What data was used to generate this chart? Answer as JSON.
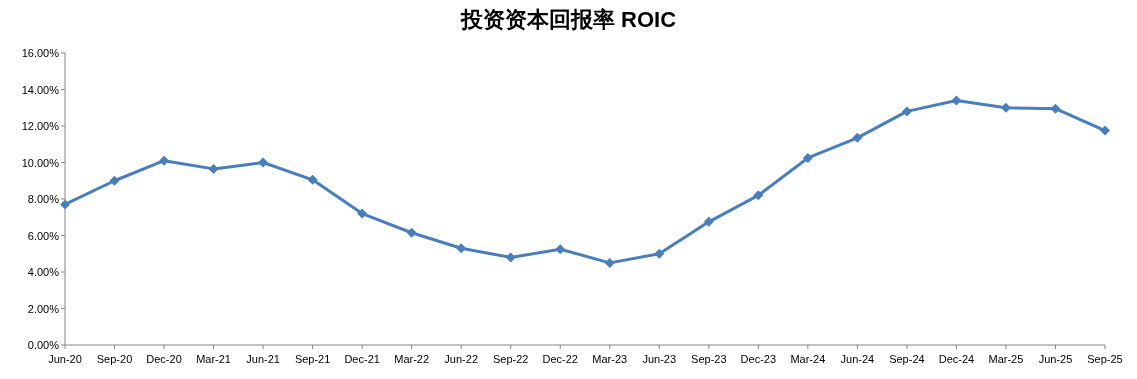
{
  "chart_data": {
    "type": "line",
    "title": "投资资本回报率 ROIC",
    "categories": [
      "Jun-20",
      "Sep-20",
      "Dec-20",
      "Mar-21",
      "Jun-21",
      "Sep-21",
      "Dec-21",
      "Mar-22",
      "Jun-22",
      "Sep-22",
      "Dec-22",
      "Mar-23",
      "Jun-23",
      "Sep-23",
      "Dec-23",
      "Mar-24",
      "Jun-24",
      "Sep-24",
      "Dec-24",
      "Mar-25",
      "Jun-25",
      "Sep-25"
    ],
    "series": [
      {
        "color": "#4a7ebb",
        "values": [
          7.7,
          9.0,
          10.1,
          9.65,
          10.0,
          9.05,
          7.2,
          6.15,
          5.3,
          4.8,
          5.25,
          4.5,
          5.0,
          6.75,
          8.2,
          10.25,
          11.35,
          12.8,
          13.4,
          13.0,
          12.95,
          11.75
        ]
      }
    ],
    "ylim": [
      0,
      16
    ],
    "yticks": [
      {
        "value": 0,
        "label": "0.00%"
      },
      {
        "value": 2,
        "label": "2.00%"
      },
      {
        "value": 4,
        "label": "4.00%"
      },
      {
        "value": 6,
        "label": "6.00%"
      },
      {
        "value": 8,
        "label": "8.00%"
      },
      {
        "value": 10,
        "label": "10.00%"
      },
      {
        "value": 12,
        "label": "12.00%"
      },
      {
        "value": 14,
        "label": "14.00%"
      },
      {
        "value": 16,
        "label": "16.00%"
      }
    ],
    "marker": "diamond",
    "line_style": "solid",
    "grid": false
  }
}
